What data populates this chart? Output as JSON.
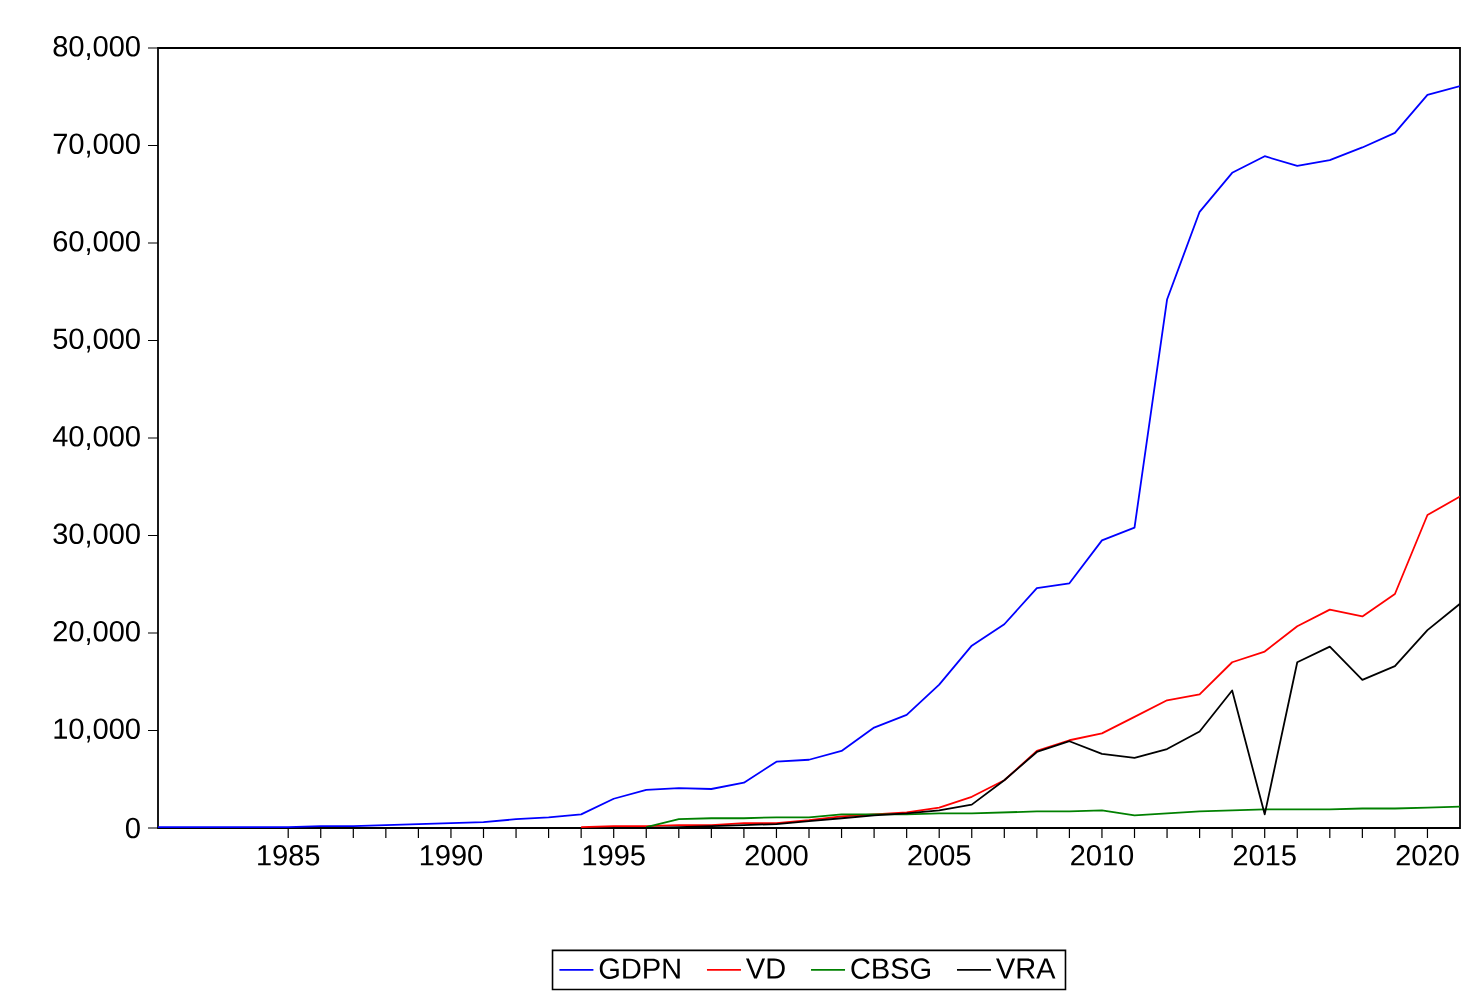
{
  "chart_data": {
    "type": "line",
    "x": [
      1981,
      1982,
      1983,
      1984,
      1985,
      1986,
      1987,
      1988,
      1989,
      1990,
      1991,
      1992,
      1993,
      1994,
      1995,
      1996,
      1997,
      1998,
      1999,
      2000,
      2001,
      2002,
      2003,
      2004,
      2005,
      2006,
      2007,
      2008,
      2009,
      2010,
      2011,
      2012,
      2013,
      2014,
      2015,
      2016,
      2017,
      2018,
      2019,
      2020,
      2021
    ],
    "series": [
      {
        "name": "GDPN",
        "color": "#0000ff",
        "values": [
          100,
          100,
          100,
          100,
          100,
          200,
          200,
          300,
          400,
          500,
          600,
          900,
          1100,
          1400,
          3000,
          3900,
          4100,
          4000,
          4650,
          6800,
          7000,
          7900,
          10300,
          11600,
          14700,
          18700,
          20900,
          24600,
          25100,
          29500,
          30800,
          54200,
          63200,
          67200,
          68900,
          67900,
          68500,
          69800,
          71300,
          75200,
          76100
        ]
      },
      {
        "name": "VD",
        "color": "#ff0000",
        "values": [
          null,
          null,
          null,
          null,
          null,
          null,
          null,
          null,
          null,
          null,
          null,
          null,
          null,
          100,
          200,
          200,
          300,
          300,
          500,
          500,
          800,
          1200,
          1400,
          1600,
          2100,
          3200,
          4900,
          7900,
          9000,
          9700,
          11400,
          13100,
          13700,
          17000,
          18100,
          20700,
          22400,
          21700,
          24000,
          32100,
          34000
        ]
      },
      {
        "name": "CBSG",
        "color": "#008000",
        "values": [
          null,
          null,
          null,
          null,
          null,
          null,
          null,
          null,
          null,
          null,
          null,
          null,
          null,
          null,
          null,
          100,
          900,
          1000,
          1000,
          1100,
          1100,
          1400,
          1400,
          1400,
          1500,
          1500,
          1600,
          1700,
          1700,
          1800,
          1300,
          1500,
          1700,
          1800,
          1900,
          1900,
          1900,
          2000,
          2000,
          2100,
          2200
        ]
      },
      {
        "name": "VRA",
        "color": "#000000",
        "values": [
          null,
          null,
          null,
          null,
          null,
          null,
          null,
          null,
          null,
          null,
          null,
          null,
          null,
          null,
          null,
          0,
          100,
          200,
          300,
          400,
          700,
          1000,
          1300,
          1500,
          1800,
          2400,
          4900,
          7800,
          8900,
          7600,
          7200,
          8100,
          9900,
          14100,
          1400,
          17000,
          18600,
          15200,
          16600,
          20300,
          23000
        ]
      }
    ],
    "xlim": [
      1981,
      2021
    ],
    "ylim": [
      0,
      80000
    ],
    "xticks": [
      1985,
      1990,
      1995,
      2000,
      2005,
      2010,
      2015,
      2020
    ],
    "yticks": [
      {
        "value": 0,
        "label": "0"
      },
      {
        "value": 10000,
        "label": "10,000"
      },
      {
        "value": 20000,
        "label": "20,000"
      },
      {
        "value": 30000,
        "label": "30,000"
      },
      {
        "value": 40000,
        "label": "40,000"
      },
      {
        "value": 50000,
        "label": "50,000"
      },
      {
        "value": 60000,
        "label": "60,000"
      },
      {
        "value": 70000,
        "label": "70,000"
      },
      {
        "value": 80000,
        "label": "80,000"
      }
    ],
    "legend": "bottom"
  }
}
